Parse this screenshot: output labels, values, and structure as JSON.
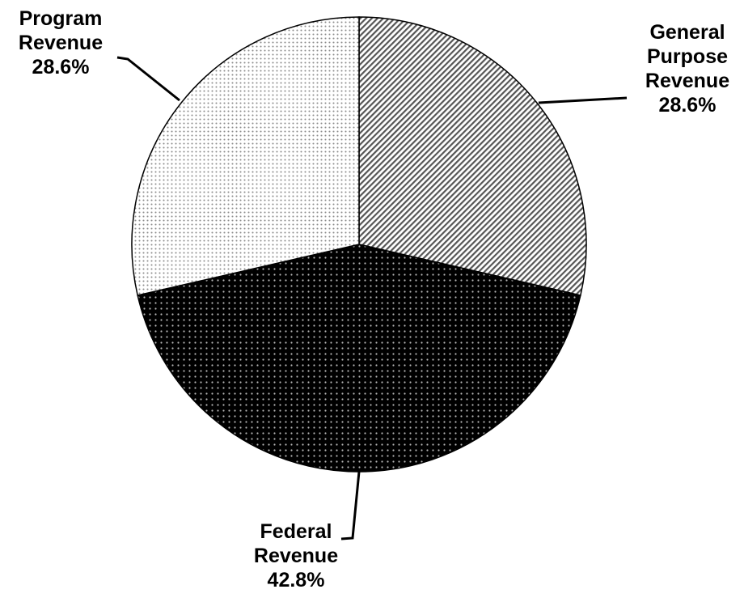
{
  "chart_data": {
    "type": "pie",
    "title": "",
    "slices": [
      {
        "label_lines": [
          "General",
          "Purpose",
          "Revenue"
        ],
        "percent_label": "28.6%",
        "value": 28.6,
        "pattern": "diagonal-hatch",
        "color": "#ffffff"
      },
      {
        "label_lines": [
          "Federal",
          "Revenue"
        ],
        "percent_label": "42.8%",
        "value": 42.8,
        "pattern": "dark-dots",
        "color": "#000000"
      },
      {
        "label_lines": [
          "Program",
          "Revenue"
        ],
        "percent_label": "28.6%",
        "value": 28.6,
        "pattern": "light-dots",
        "color": "#ffffff"
      }
    ],
    "start_angle_deg": 0,
    "direction": "clockwise",
    "legend": "none",
    "label_placement": "outside-with-leader-lines"
  }
}
